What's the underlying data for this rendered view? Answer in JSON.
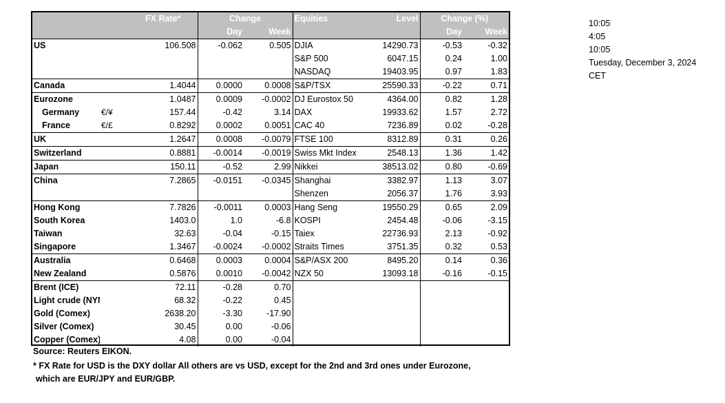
{
  "headers": {
    "fx_rate": "FX Rate*",
    "change": "Change",
    "day": "Day",
    "week": "Week",
    "equities": "Equities",
    "level": "Level",
    "change_pct": "Change (%)",
    "day2": "Day",
    "week2": "Week"
  },
  "rows": [
    {
      "country": "US",
      "cur": "",
      "fx": "106.508",
      "fxday": "-0.062",
      "fxweek": "0.505",
      "eq": "DJIA",
      "level": "14290.73",
      "eqday": "-0.53",
      "eqweek": "-0.32"
    },
    {
      "country": "",
      "cur": "",
      "fx": "",
      "fxday": "",
      "fxweek": "",
      "eq": "S&P 500",
      "level": "6047.15",
      "eqday": "0.24",
      "eqweek": "1.00"
    },
    {
      "country": "",
      "cur": "",
      "fx": "",
      "fxday": "",
      "fxweek": "",
      "eq": "NASDAQ",
      "level": "19403.95",
      "eqday": "0.97",
      "eqweek": "1.83"
    },
    {
      "country": "Canada",
      "cur": "",
      "fx": "1.4044",
      "fxday": "0.0000",
      "fxweek": "0.0008",
      "eq": "S&P/TSX",
      "level": "25590.33",
      "eqday": "-0.22",
      "eqweek": "0.71"
    },
    {
      "country": "Eurozone",
      "cur": "",
      "fx": "1.0487",
      "fxday": "0.0009",
      "fxweek": "-0.0002",
      "eq": "DJ Eurostox 50",
      "level": "4364.00",
      "eqday": "0.82",
      "eqweek": "1.28"
    },
    {
      "country": "Germany",
      "cur": "€/¥",
      "fx": "157.44",
      "fxday": "-0.42",
      "fxweek": "3.14",
      "eq": "DAX",
      "level": "19933.62",
      "eqday": "1.57",
      "eqweek": "2.72"
    },
    {
      "country": "France",
      "cur": "€/£",
      "fx": "0.8292",
      "fxday": "0.0002",
      "fxweek": "0.0051",
      "eq": "CAC 40",
      "level": "7236.89",
      "eqday": "0.02",
      "eqweek": "-0.28"
    },
    {
      "country": "UK",
      "cur": "",
      "fx": "1.2647",
      "fxday": "0.0008",
      "fxweek": "-0.0079",
      "eq": "FTSE 100",
      "level": "8312.89",
      "eqday": "0.31",
      "eqweek": "0.26"
    },
    {
      "country": "Switzerland",
      "cur": "",
      "fx": "0.8881",
      "fxday": "-0.0014",
      "fxweek": "-0.0019",
      "eq": "Swiss Mkt Index",
      "level": "2548.13",
      "eqday": "1.36",
      "eqweek": "1.42"
    },
    {
      "country": "Japan",
      "cur": "",
      "fx": "150.11",
      "fxday": "-0.52",
      "fxweek": "2.99",
      "eq": "Nikkei",
      "level": "38513.02",
      "eqday": "0.80",
      "eqweek": "-0.69"
    },
    {
      "country": "China",
      "cur": "",
      "fx": "7.2865",
      "fxday": "-0.0151",
      "fxweek": "-0.0345",
      "eq": "Shanghai",
      "level": "3382.97",
      "eqday": "1.13",
      "eqweek": "3.07"
    },
    {
      "country": "",
      "cur": "",
      "fx": "",
      "fxday": "",
      "fxweek": "",
      "eq": "Shenzen",
      "level": "2056.37",
      "eqday": "1.76",
      "eqweek": "3.93"
    },
    {
      "country": "Hong Kong",
      "cur": "",
      "fx": "7.7826",
      "fxday": "-0.0011",
      "fxweek": "0.0003",
      "eq": "Hang Seng",
      "level": "19550.29",
      "eqday": "0.65",
      "eqweek": "2.09"
    },
    {
      "country": "South Korea",
      "cur": "",
      "fx": "1403.0",
      "fxday": "1.0",
      "fxweek": "-6.8",
      "eq": "KOSPI",
      "level": "2454.48",
      "eqday": "-0.06",
      "eqweek": "-3.15"
    },
    {
      "country": "Taiwan",
      "cur": "",
      "fx": "32.63",
      "fxday": "-0.04",
      "fxweek": "-0.15",
      "eq": "Taiex",
      "level": "22736.93",
      "eqday": "2.13",
      "eqweek": "-0.92"
    },
    {
      "country": "Singapore",
      "cur": "",
      "fx": "1.3467",
      "fxday": "-0.0024",
      "fxweek": "-0.0002",
      "eq": "Straits Times",
      "level": "3751.35",
      "eqday": "0.32",
      "eqweek": "0.53"
    },
    {
      "country": "Australia",
      "cur": "",
      "fx": "0.6468",
      "fxday": "0.0003",
      "fxweek": "0.0004",
      "eq": "S&P/ASX  200",
      "level": "8495.20",
      "eqday": "0.14",
      "eqweek": "0.36"
    },
    {
      "country": "New Zealand",
      "cur": "",
      "fx": "0.5876",
      "fxday": "0.0010",
      "fxweek": "-0.0042",
      "eq": "NZX 50",
      "level": "13093.18",
      "eqday": "-0.16",
      "eqweek": "-0.15"
    },
    {
      "country": "Brent (ICE)",
      "cur": "",
      "fx": "72.11",
      "fxday": "-0.28",
      "fxweek": "0.70",
      "eq": "",
      "level": "",
      "eqday": "",
      "eqweek": ""
    },
    {
      "country": "Light crude (NYMEX)",
      "cur": "",
      "fx": "68.32",
      "fxday": "-0.22",
      "fxweek": "0.45",
      "eq": "",
      "level": "",
      "eqday": "",
      "eqweek": ""
    },
    {
      "country": "Gold (Comex)",
      "cur": "",
      "fx": "2638.20",
      "fxday": "-3.30",
      "fxweek": "-17.90",
      "eq": "",
      "level": "",
      "eqday": "",
      "eqweek": ""
    },
    {
      "country": "Silver (Comex)",
      "cur": "",
      "fx": "30.45",
      "fxday": "0.00",
      "fxweek": "-0.06",
      "eq": "",
      "level": "",
      "eqday": "",
      "eqweek": ""
    },
    {
      "country": "Copper (Comex)",
      "cur": "",
      "fx": "4.08",
      "fxday": "0.00",
      "fxweek": "-0.04",
      "eq": "",
      "level": "",
      "eqday": "",
      "eqweek": ""
    }
  ],
  "footer": {
    "source": "Source:  Reuters EIKON.",
    "note1": "* FX Rate for USD is the DXY dollar  All others are vs USD, except for the 2nd and 3rd ones under Eurozone,",
    "note2": "which are EUR/JPY and EUR/GBP."
  },
  "side": {
    "line1": "10:05",
    "line2": "4:05",
    "line3": "10:05",
    "line4": "Tuesday, December 3, 2024",
    "line5": "CET"
  }
}
